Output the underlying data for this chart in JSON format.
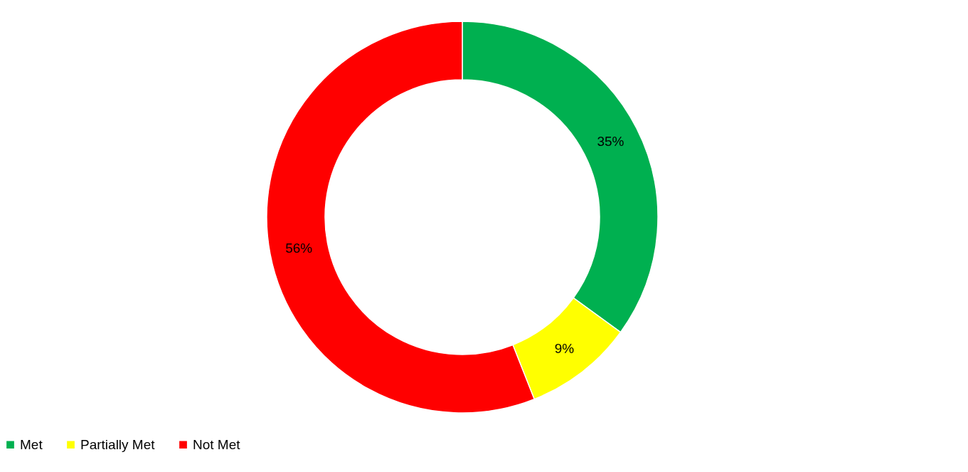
{
  "chart_data": {
    "type": "donut",
    "categories": [
      "Met",
      "Partially Met",
      "Not Met"
    ],
    "values": [
      35,
      9,
      56
    ],
    "colors": [
      "#00b050",
      "#ffff00",
      "#ff0000"
    ],
    "value_labels": [
      "35%",
      "9%",
      "56%"
    ],
    "legend": "bottom"
  }
}
